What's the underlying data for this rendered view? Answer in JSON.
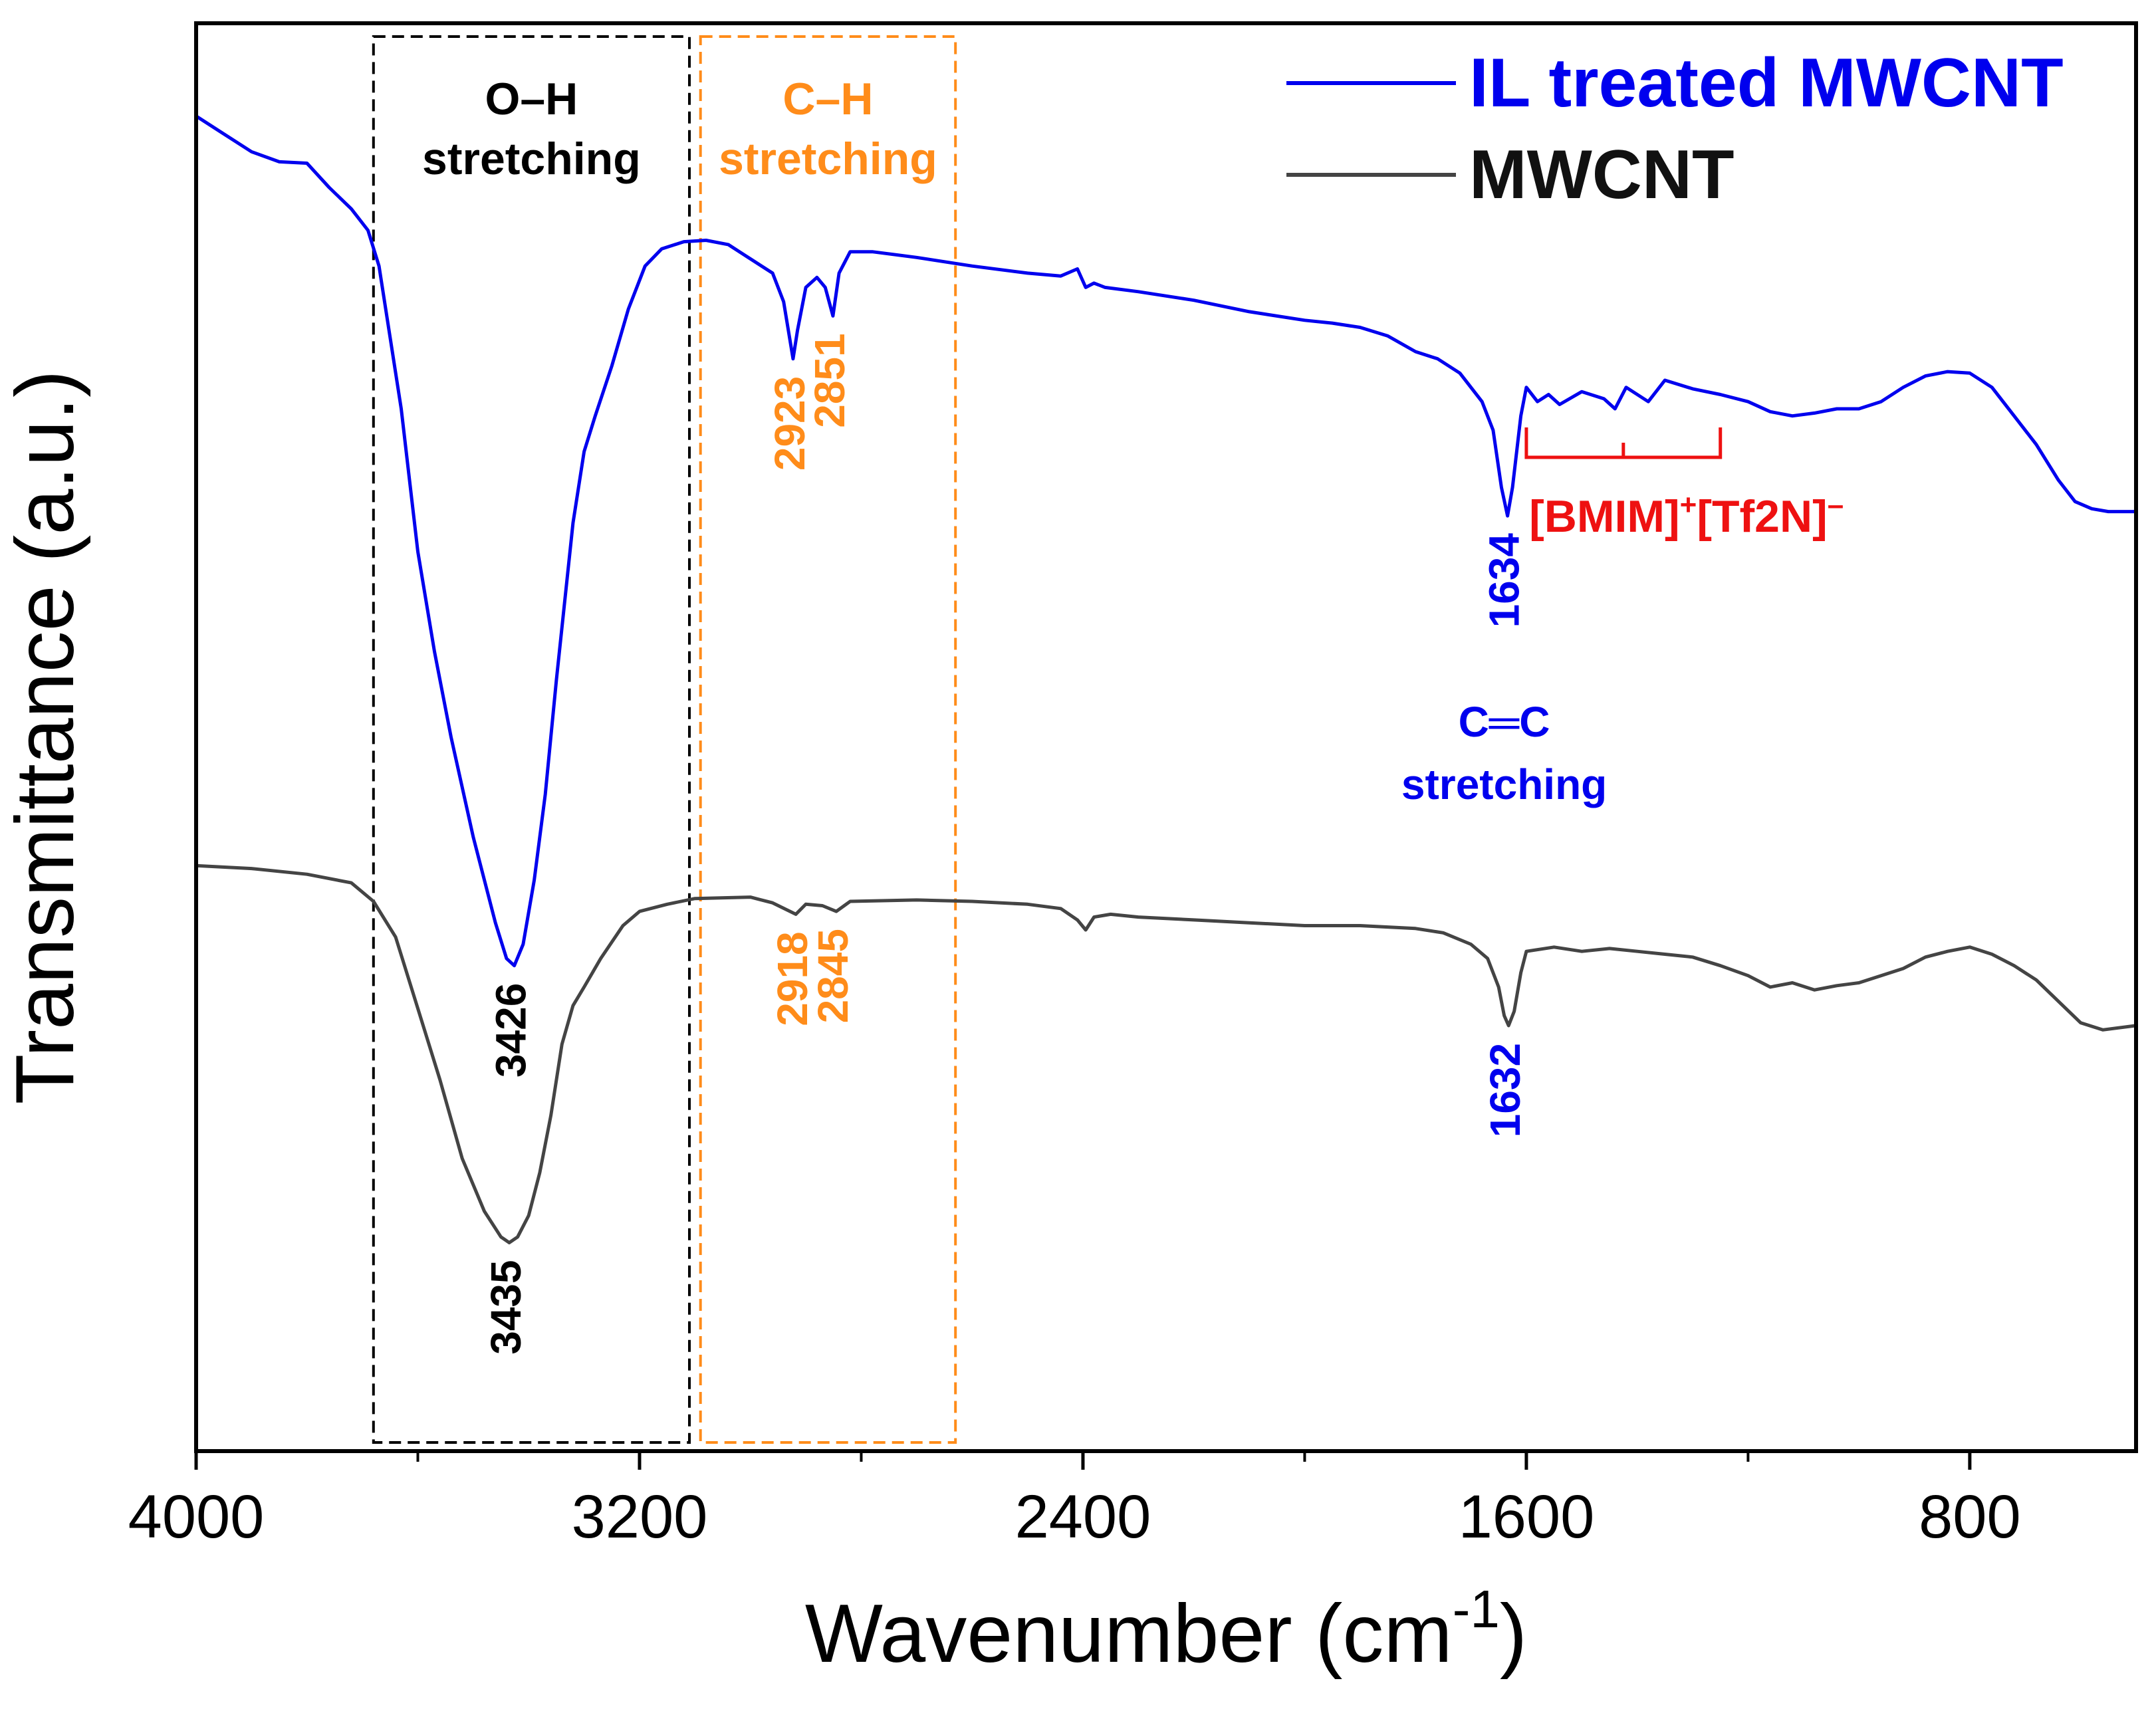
{
  "chart_data": {
    "type": "line",
    "title": "",
    "xlabel": "Wavenumber (cm",
    "xlabel_sup": "-1",
    "xlabel_close": ")",
    "ylabel": "Transmittance (a.u.)",
    "xlim": [
      4000,
      500
    ],
    "ylim": [
      0,
      100
    ],
    "x_ticks": [
      4000,
      3200,
      2400,
      1600,
      800
    ],
    "x_minor_ticks": [
      3600,
      2800,
      2000,
      1200
    ],
    "y_ticks_shown": false,
    "legend_position": "top-right",
    "series": [
      {
        "name": "IL treated MWCNT",
        "color": "#0000ee",
        "points": [
          [
            4000,
            93.5
          ],
          [
            3960,
            92.5
          ],
          [
            3900,
            91.0
          ],
          [
            3850,
            90.3
          ],
          [
            3800,
            90.2
          ],
          [
            3760,
            88.5
          ],
          [
            3720,
            87.0
          ],
          [
            3690,
            85.5
          ],
          [
            3670,
            83.0
          ],
          [
            3650,
            78
          ],
          [
            3630,
            73
          ],
          [
            3600,
            63
          ],
          [
            3570,
            56
          ],
          [
            3540,
            50
          ],
          [
            3500,
            43
          ],
          [
            3460,
            37
          ],
          [
            3440,
            34.5
          ],
          [
            3426,
            34
          ],
          [
            3410,
            35.5
          ],
          [
            3390,
            40
          ],
          [
            3370,
            46
          ],
          [
            3350,
            54
          ],
          [
            3320,
            65
          ],
          [
            3300,
            70
          ],
          [
            3280,
            72.5
          ],
          [
            3250,
            76
          ],
          [
            3220,
            80
          ],
          [
            3190,
            83
          ],
          [
            3160,
            84.2
          ],
          [
            3120,
            84.7
          ],
          [
            3080,
            84.8
          ],
          [
            3040,
            84.5
          ],
          [
            3000,
            83.5
          ],
          [
            2960,
            82.5
          ],
          [
            2940,
            80.5
          ],
          [
            2923,
            76.5
          ],
          [
            2915,
            78.5
          ],
          [
            2900,
            81.5
          ],
          [
            2880,
            82.2
          ],
          [
            2865,
            81.5
          ],
          [
            2851,
            79.5
          ],
          [
            2840,
            82.5
          ],
          [
            2820,
            84.0
          ],
          [
            2780,
            84.0
          ],
          [
            2700,
            83.6
          ],
          [
            2600,
            83.0
          ],
          [
            2500,
            82.5
          ],
          [
            2440,
            82.3
          ],
          [
            2410,
            82.8
          ],
          [
            2395,
            81.5
          ],
          [
            2380,
            81.8
          ],
          [
            2360,
            81.5
          ],
          [
            2300,
            81.2
          ],
          [
            2200,
            80.6
          ],
          [
            2100,
            79.8
          ],
          [
            2000,
            79.2
          ],
          [
            1950,
            79.0
          ],
          [
            1900,
            78.7
          ],
          [
            1850,
            78.1
          ],
          [
            1800,
            77.0
          ],
          [
            1760,
            76.5
          ],
          [
            1720,
            75.5
          ],
          [
            1680,
            73.5
          ],
          [
            1660,
            71.5
          ],
          [
            1645,
            67.5
          ],
          [
            1634,
            65.5
          ],
          [
            1625,
            67.5
          ],
          [
            1610,
            72.5
          ],
          [
            1600,
            74.5
          ],
          [
            1580,
            73.5
          ],
          [
            1560,
            74.0
          ],
          [
            1540,
            73.3
          ],
          [
            1500,
            74.2
          ],
          [
            1460,
            73.7
          ],
          [
            1440,
            73.0
          ],
          [
            1420,
            74.5
          ],
          [
            1380,
            73.5
          ],
          [
            1350,
            75.0
          ],
          [
            1300,
            74.4
          ],
          [
            1250,
            74.0
          ],
          [
            1200,
            73.5
          ],
          [
            1160,
            72.8
          ],
          [
            1120,
            72.5
          ],
          [
            1080,
            72.7
          ],
          [
            1040,
            73.0
          ],
          [
            1000,
            73.0
          ],
          [
            960,
            73.5
          ],
          [
            920,
            74.5
          ],
          [
            880,
            75.3
          ],
          [
            840,
            75.6
          ],
          [
            800,
            75.5
          ],
          [
            760,
            74.5
          ],
          [
            720,
            72.5
          ],
          [
            680,
            70.5
          ],
          [
            640,
            68.0
          ],
          [
            610,
            66.5
          ],
          [
            580,
            66.0
          ],
          [
            550,
            65.8
          ],
          [
            500,
            65.8
          ]
        ]
      },
      {
        "name": "MWCNT",
        "color": "#444444",
        "points": [
          [
            4000,
            41.0
          ],
          [
            3900,
            40.8
          ],
          [
            3800,
            40.4
          ],
          [
            3720,
            39.8
          ],
          [
            3680,
            38.5
          ],
          [
            3640,
            36
          ],
          [
            3600,
            31
          ],
          [
            3560,
            26
          ],
          [
            3520,
            20.5
          ],
          [
            3480,
            16.8
          ],
          [
            3450,
            15.0
          ],
          [
            3435,
            14.6
          ],
          [
            3420,
            15.0
          ],
          [
            3400,
            16.5
          ],
          [
            3380,
            19.5
          ],
          [
            3360,
            23.5
          ],
          [
            3340,
            28.5
          ],
          [
            3320,
            31.2
          ],
          [
            3300,
            32.5
          ],
          [
            3270,
            34.5
          ],
          [
            3230,
            36.8
          ],
          [
            3200,
            37.8
          ],
          [
            3150,
            38.3
          ],
          [
            3100,
            38.7
          ],
          [
            3000,
            38.8
          ],
          [
            2960,
            38.4
          ],
          [
            2918,
            37.6
          ],
          [
            2900,
            38.3
          ],
          [
            2870,
            38.2
          ],
          [
            2845,
            37.8
          ],
          [
            2820,
            38.5
          ],
          [
            2700,
            38.6
          ],
          [
            2600,
            38.5
          ],
          [
            2500,
            38.3
          ],
          [
            2440,
            38.0
          ],
          [
            2410,
            37.2
          ],
          [
            2395,
            36.5
          ],
          [
            2380,
            37.4
          ],
          [
            2350,
            37.6
          ],
          [
            2300,
            37.4
          ],
          [
            2200,
            37.2
          ],
          [
            2100,
            37.0
          ],
          [
            2000,
            36.8
          ],
          [
            1900,
            36.8
          ],
          [
            1800,
            36.6
          ],
          [
            1750,
            36.3
          ],
          [
            1700,
            35.5
          ],
          [
            1670,
            34.5
          ],
          [
            1650,
            32.5
          ],
          [
            1640,
            30.5
          ],
          [
            1632,
            29.8
          ],
          [
            1622,
            30.8
          ],
          [
            1610,
            33.5
          ],
          [
            1600,
            35.0
          ],
          [
            1550,
            35.3
          ],
          [
            1500,
            35.0
          ],
          [
            1450,
            35.2
          ],
          [
            1400,
            35.0
          ],
          [
            1350,
            34.8
          ],
          [
            1300,
            34.6
          ],
          [
            1250,
            34.0
          ],
          [
            1200,
            33.3
          ],
          [
            1160,
            32.5
          ],
          [
            1120,
            32.8
          ],
          [
            1080,
            32.3
          ],
          [
            1040,
            32.6
          ],
          [
            1000,
            32.8
          ],
          [
            960,
            33.3
          ],
          [
            920,
            33.8
          ],
          [
            880,
            34.6
          ],
          [
            840,
            35.0
          ],
          [
            800,
            35.3
          ],
          [
            760,
            34.8
          ],
          [
            720,
            34.0
          ],
          [
            680,
            33.0
          ],
          [
            640,
            31.5
          ],
          [
            600,
            30.0
          ],
          [
            560,
            29.5
          ],
          [
            500,
            29.8
          ]
        ]
      }
    ],
    "annotations": {
      "oh_box_title": [
        "O–H",
        "stretching"
      ],
      "ch_box_title": [
        "C–H",
        "stretching"
      ],
      "cc_label": [
        "C═C",
        "stretching"
      ],
      "peaks": [
        {
          "label": "3426",
          "x": 3426,
          "color": "#000000",
          "series": 0
        },
        {
          "label": "2923",
          "x": 2923,
          "color": "#ff8c1a",
          "series": 0
        },
        {
          "label": "2851",
          "x": 2851,
          "color": "#ff8c1a",
          "series": 0
        },
        {
          "label": "1634",
          "x": 1634,
          "color": "#0000ee",
          "series": 0
        },
        {
          "label": "3435",
          "x": 3435,
          "color": "#000000",
          "series": 1
        },
        {
          "label": "2918",
          "x": 2918,
          "color": "#ff8c1a",
          "series": 1
        },
        {
          "label": "2845",
          "x": 2845,
          "color": "#ff8c1a",
          "series": 1
        },
        {
          "label": "1632",
          "x": 1632,
          "color": "#0000ee",
          "series": 1
        }
      ],
      "il_bracket": {
        "x_range": [
          1600,
          1250
        ],
        "label_main": "[BMIM]",
        "sup1": "+",
        "label_mid": "[Tf2N]",
        "sup2": "–"
      }
    }
  },
  "colors": {
    "axis": "#000000",
    "oh_box": "#000000",
    "ch_box": "#ff8c1a",
    "bracket": "#ee1111"
  }
}
